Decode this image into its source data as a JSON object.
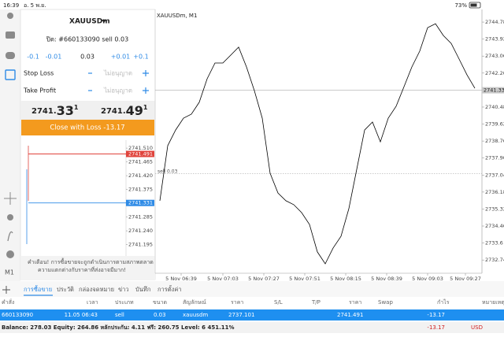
{
  "status_bar": {
    "time": "16:39",
    "date": "อ. 5 พ.ย.",
    "battery": "73%"
  },
  "sidebar": {
    "timeframe": "M1"
  },
  "order_panel": {
    "symbol": "XAUUSDm",
    "close_label": "ปิด: #660133090 sell 0.03",
    "volume_steps": [
      "-0.1",
      "-0.01",
      "0.03",
      "+0.01",
      "+0.1"
    ],
    "stop_loss": {
      "label": "Stop Loss",
      "value": "ไม่อนุญาต"
    },
    "take_profit": {
      "label": "Take Profit",
      "value": "ไม่อนุญาต"
    },
    "bid": {
      "head": "2741.",
      "big": "33",
      "tail": "1"
    },
    "ask": {
      "head": "2741.",
      "big": "49",
      "tail": "1"
    },
    "button": "Close with Loss -13.17",
    "tick_chart": {
      "ylim": [
        2741.158,
        2741.536
      ],
      "yticks": [
        {
          "value": 2741.51,
          "label": "2741.510"
        },
        {
          "value": 2741.465,
          "label": "2741.465"
        },
        {
          "value": 2741.42,
          "label": "2741.420"
        },
        {
          "value": 2741.375,
          "label": "2741.375"
        },
        {
          "value": 2741.285,
          "label": "2741.285"
        },
        {
          "value": 2741.24,
          "label": "2741.240"
        },
        2741.195
      ],
      "ask": {
        "value": 2741.491,
        "label": "2741.491",
        "color": "#e0443c"
      },
      "bid": {
        "value": 2741.331,
        "label": "2741.331",
        "color": "#2f8be6"
      }
    },
    "warning": [
      "คำเตือน! การซื้อขายจะถูกดำเนินการตามสภาพตลาด",
      "ความแตกต่างกับราคาที่ส่งอาจมีมาก!"
    ]
  },
  "chart": {
    "title": "XAUUSDm, M1",
    "values": [
      2735.74,
      2738.53,
      2739.32,
      2739.92,
      2740.12,
      2740.72,
      2741.91,
      2742.71,
      2742.71,
      2743.11,
      2743.51,
      2742.51,
      2741.31,
      2739.92,
      2737.13,
      2736.13,
      2735.74,
      2735.54,
      2735.14,
      2734.54,
      2733.15,
      2732.55,
      2733.35,
      2733.94,
      2735.34,
      2737.33,
      2739.32,
      2739.72,
      2738.72,
      2739.92,
      2740.52,
      2741.51,
      2742.51,
      2743.31,
      2744.5,
      2744.7,
      2744.1,
      2743.7,
      2742.91,
      2742.11,
      2741.43
    ],
    "color": "#000000",
    "xlim": [
      -0.6,
      40.9
    ],
    "xticks": [
      {
        "value": 2.7,
        "label": "5 Nov 06:39"
      },
      {
        "value": 8.0,
        "label": "5 Nov 07:03"
      },
      {
        "value": 13.2,
        "label": "5 Nov 07:27"
      },
      {
        "value": 18.4,
        "label": "5 Nov 07:51"
      },
      {
        "value": 23.6,
        "label": "5 Nov 08:15"
      },
      {
        "value": 28.8,
        "label": "5 Nov 08:39"
      },
      {
        "value": 34.0,
        "label": "5 Nov 09:03"
      },
      {
        "value": 38.8,
        "label": "5 Nov 09:27"
      }
    ],
    "ylim": [
      2732.07,
      2745.42
    ],
    "yticks": [
      {
        "value": 2744.78,
        "label": "2744.780"
      },
      {
        "value": 2743.92,
        "label": "2743.920"
      },
      {
        "value": 2743.06,
        "label": "2743.060"
      },
      {
        "value": 2742.2,
        "label": "2742.200"
      },
      {
        "value": 2740.48,
        "label": "2740.480"
      },
      {
        "value": 2739.62,
        "label": "2739.620"
      },
      {
        "value": 2738.76,
        "label": "2738.760"
      },
      {
        "value": 2737.9,
        "label": "2737.900"
      },
      {
        "value": 2737.04,
        "label": "2737.040"
      },
      {
        "value": 2736.18,
        "label": "2736.180"
      },
      {
        "value": 2735.32,
        "label": "2735.320"
      },
      {
        "value": 2734.46,
        "label": "2734.460"
      },
      2733.6,
      {
        "value": 2732.74,
        "label": "2732.740"
      }
    ],
    "current_price": {
      "value": 2741.331,
      "label": "2741.331"
    },
    "order_line": {
      "value": 2737.101,
      "label": "sell 0.03"
    }
  },
  "tabs": [
    "การซื้อขาย",
    "ประวัติ",
    "กล่องจดหมาย",
    "ข่าว",
    "บันทึก",
    "การตั้งค่า"
  ],
  "table": {
    "headers": [
      "คำสั่ง",
      "เวลา",
      "ประเภท",
      "ขนาด",
      "สัญลักษณ์",
      "ราคา",
      "S/L",
      "T/P",
      "ราคา",
      "Swap",
      "กำไร",
      "หมายเหตุ"
    ],
    "row": {
      "order": "660133090",
      "time": "11.05 06:43",
      "type": "sell",
      "volume": "0.03",
      "symbol": "xauusdm",
      "price": "2737.101",
      "current_price": "2741.491",
      "profit": "-13.17"
    }
  },
  "balance": {
    "text": "Balance: 278.03 Equity: 264.86 หลักประกัน: 4.11 ฟรี: 260.75 Level: 6 451.11%",
    "profit": "-13.17",
    "currency": "USD"
  }
}
